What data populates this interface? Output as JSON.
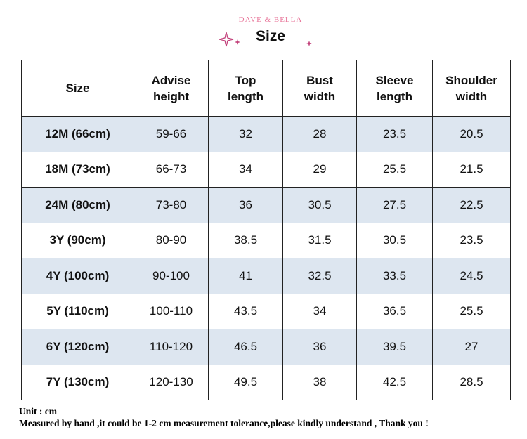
{
  "header": {
    "brand": "DAVE & BELLA",
    "title": "Size"
  },
  "table": {
    "columns": [
      "Size",
      "Advise height",
      "Top length",
      "Bust width",
      "Sleeve length",
      "Shoulder width"
    ],
    "rows": [
      [
        "12M (66cm)",
        "59-66",
        32,
        28,
        23.5,
        20.5
      ],
      [
        "18M (73cm)",
        "66-73",
        34,
        29,
        25.5,
        21.5
      ],
      [
        "24M (80cm)",
        "73-80",
        36,
        30.5,
        27.5,
        22.5
      ],
      [
        "3Y (90cm)",
        "80-90",
        38.5,
        31.5,
        30.5,
        23.5
      ],
      [
        "4Y (100cm)",
        "90-100",
        41,
        32.5,
        33.5,
        24.5
      ],
      [
        "5Y (110cm)",
        "100-110",
        43.5,
        34,
        36.5,
        25.5
      ],
      [
        "6Y (120cm)",
        "110-120",
        46.5,
        36,
        39.5,
        27
      ],
      [
        "7Y (130cm)",
        "120-130",
        49.5,
        38,
        42.5,
        28.5
      ]
    ]
  },
  "footer": {
    "unit": "Unit : cm",
    "note": "Measured by hand ,it could be 1-2 cm measurement tolerance,please kindly understand , Thank you !"
  }
}
